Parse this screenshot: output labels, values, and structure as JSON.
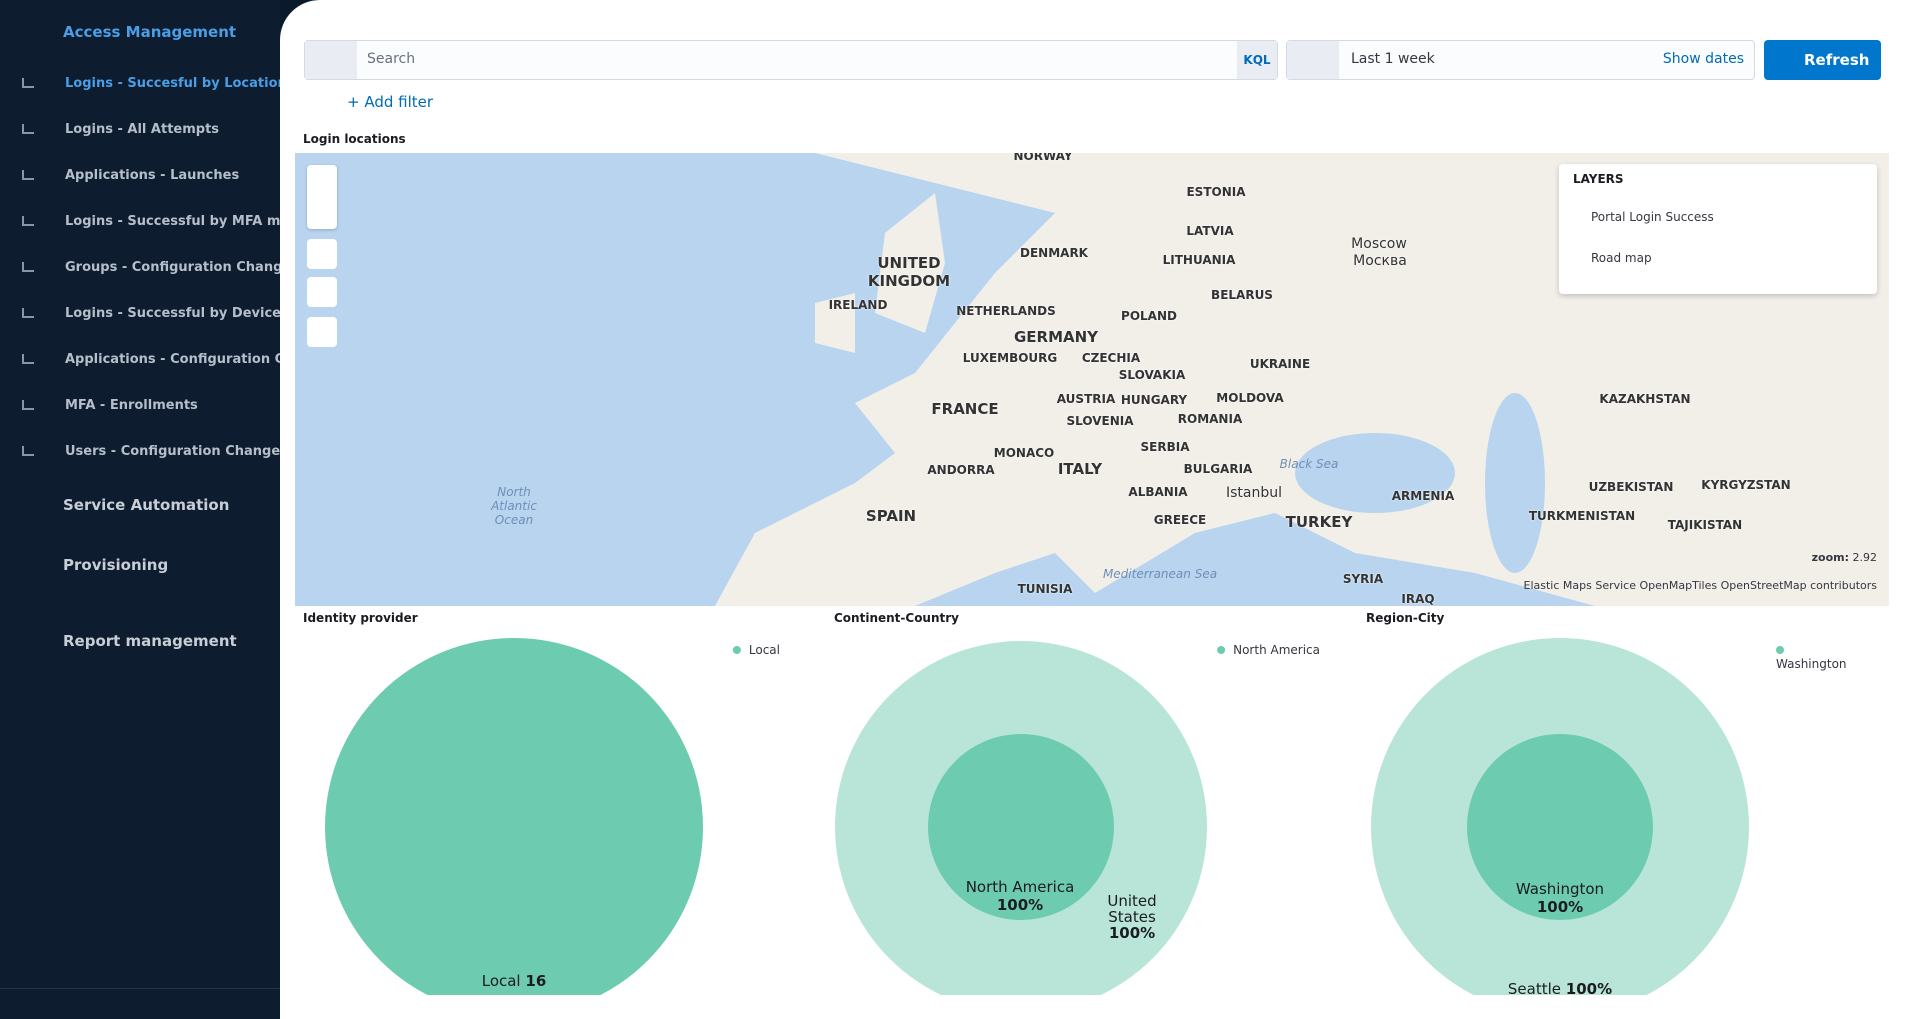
{
  "sidebar": {
    "sections": [
      {
        "title": "Access Management",
        "items": [
          "Logins - Succesful by Location",
          "Logins - All Attempts",
          "Applications - Launches",
          "Logins - Successful by MFA m...",
          "Groups - Configuration Changes",
          "Logins - Successful by Device",
          "Applications - Configuration C...",
          "MFA - Enrollments",
          "Users - Configuration Changes"
        ]
      },
      {
        "title": "Service Automation"
      },
      {
        "title": "Provisioning"
      }
    ],
    "report": "Report management"
  },
  "query": {
    "placeholder": "Search",
    "language": "KQL",
    "range": "Last 1 week",
    "show_dates": "Show dates",
    "refresh": "Refresh",
    "add_filter": "+ Add filter"
  },
  "map": {
    "title": "Login locations",
    "labels": [
      "NORWAY",
      "ESTONIA",
      "LATVIA",
      "LITHUANIA",
      "UNITED KINGDOM",
      "DENMARK",
      "IRELAND",
      "NETHERLANDS",
      "GERMANY",
      "POLAND",
      "BELARUS",
      "LUXEMBOURG",
      "CZECHIA",
      "SLOVAKIA",
      "UKRAINE",
      "FRANCE",
      "AUSTRIA",
      "HUNGARY",
      "MOLDOVA",
      "SLOVENIA",
      "ROMANIA",
      "SERBIA",
      "MONACO",
      "ANDORRA",
      "ITALY",
      "BULGARIA",
      "ALBANIA",
      "Istanbul",
      "SPAIN",
      "GREECE",
      "TURKEY",
      "TUNISIA",
      "SYRIA",
      "IRAQ",
      "ARMENIA",
      "KAZAKHSTAN",
      "UZBEKISTAN",
      "KYRGYZSTAN",
      "TURKMENISTAN",
      "TAJIKISTAN",
      "Moscow",
      "Москва",
      "North Atlantic Ocean",
      "Black Sea",
      "Mediterranean Sea"
    ],
    "zoom_label": "zoom:",
    "zoom": "2.92",
    "attribution": "Elastic Maps Service  OpenMapTiles  OpenStreetMap contributors",
    "layers": {
      "title": "LAYERS",
      "items": [
        "Portal Login Success",
        "Road map"
      ]
    }
  },
  "panels": [
    {
      "title": "Identity provider",
      "legend": "Local",
      "labels": [
        {
          "name": "Local",
          "value": "16"
        }
      ]
    },
    {
      "title": "Continent-Country",
      "legend": "North America",
      "labels": [
        {
          "name": "North America",
          "value": "100%"
        },
        {
          "name": "United States",
          "value": "100%"
        }
      ]
    },
    {
      "title": "Region-City",
      "legend": "Washington",
      "labels": [
        {
          "name": "Washington",
          "value": "100%"
        },
        {
          "name": "Seattle",
          "value": "100%"
        }
      ]
    }
  ]
}
